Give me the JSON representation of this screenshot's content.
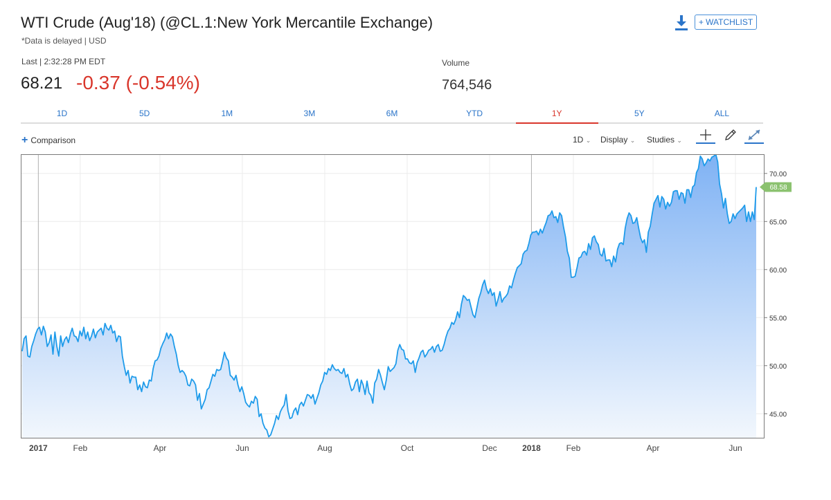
{
  "header": {
    "title": "WTI Crude (Aug'18) (@CL.1:New York Mercantile Exchange)",
    "subtitle": "*Data is delayed | USD",
    "watchlist_label": "+ WATCHLIST",
    "download_icon": "download-icon"
  },
  "quote": {
    "last_label": "Last | 2:32:28 PM EDT",
    "last_price": "68.21",
    "change": "-0.37 (-0.54%)",
    "volume_label": "Volume",
    "volume_value": "764,546",
    "change_color": "#d9362b"
  },
  "tabs": [
    {
      "label": "1D",
      "active": false
    },
    {
      "label": "5D",
      "active": false
    },
    {
      "label": "1M",
      "active": false
    },
    {
      "label": "3M",
      "active": false
    },
    {
      "label": "6M",
      "active": false
    },
    {
      "label": "YTD",
      "active": false
    },
    {
      "label": "1Y",
      "active": true
    },
    {
      "label": "5Y",
      "active": false
    },
    {
      "label": "ALL",
      "active": false
    }
  ],
  "toolbar": {
    "comparison_label": "Comparison",
    "interval_label": "1D",
    "display_label": "Display",
    "studies_label": "Studies",
    "icons": [
      "crosshair-icon",
      "pencil-icon",
      "expand-icon"
    ]
  },
  "chart_data": {
    "type": "area",
    "series": [
      {
        "values": [
          51.5,
          52.8,
          53.1,
          51.0,
          50.9,
          52.0,
          52.6,
          53.3,
          53.8,
          54.0,
          53.2,
          54.1,
          53.5,
          52.0,
          52.4,
          53.2,
          51.2,
          53.5,
          52.0,
          51.0,
          53.1,
          52.0,
          52.7,
          53.0,
          52.4,
          53.3,
          53.9,
          53.1,
          53.0,
          52.5,
          53.6,
          53.1,
          54.0,
          52.8,
          53.5,
          52.6,
          53.1,
          53.8,
          52.9,
          53.5,
          53.7,
          53.9,
          53.2,
          54.4,
          53.9,
          53.7,
          54.2,
          53.4,
          53.6,
          52.5,
          53.1,
          53.0,
          51.0,
          49.9,
          49.0,
          49.5,
          48.2,
          48.9,
          48.8,
          48.8,
          47.5,
          48.0,
          47.3,
          48.3,
          47.8,
          47.7,
          48.5,
          48.4,
          49.7,
          50.5,
          50.6,
          51.0,
          51.8,
          52.3,
          52.7,
          53.4,
          52.8,
          53.3,
          53.0,
          52.0,
          51.2,
          50.0,
          49.3,
          49.5,
          49.3,
          48.9,
          48.0,
          47.9,
          48.6,
          48.4,
          48.0,
          46.4,
          47.1,
          45.5,
          46.0,
          46.5,
          47.5,
          47.7,
          48.4,
          49.1,
          48.9,
          49.6,
          49.5,
          49.6,
          50.4,
          51.4,
          50.8,
          50.5,
          49.0,
          48.8,
          48.5,
          49.0,
          48.0,
          47.3,
          47.8,
          47.1,
          46.2,
          45.9,
          45.7,
          46.3,
          46.1,
          46.8,
          46.5,
          44.7,
          45.0,
          44.0,
          43.5,
          43.3,
          42.6,
          42.8,
          43.4,
          44.0,
          44.8,
          44.4,
          45.2,
          45.6,
          45.9,
          47.0,
          45.3,
          44.5,
          44.6,
          45.3,
          45.6,
          44.9,
          45.9,
          46.2,
          45.8,
          46.4,
          47.0,
          46.9,
          46.6,
          47.0,
          46.0,
          46.6,
          47.2,
          48.0,
          48.4,
          49.3,
          49.1,
          49.7,
          49.5,
          50.1,
          49.7,
          49.5,
          49.6,
          49.3,
          49.2,
          49.7,
          48.8,
          49.1,
          48.1,
          47.4,
          47.6,
          48.3,
          48.6,
          47.3,
          48.5,
          48.0,
          47.0,
          48.4,
          47.2,
          46.9,
          46.1,
          48.2,
          48.6,
          49.6,
          49.0,
          48.2,
          47.5,
          48.5,
          49.9,
          49.4,
          49.6,
          49.8,
          50.2,
          51.6,
          52.2,
          51.7,
          51.6,
          50.7,
          50.7,
          50.3,
          50.2,
          50.5,
          49.3,
          50.3,
          50.8,
          51.4,
          51.6,
          50.9,
          51.2,
          51.6,
          51.7,
          52.0,
          51.4,
          52.0,
          52.2,
          51.5,
          51.6,
          52.2,
          53.0,
          53.6,
          53.9,
          54.5,
          54.3,
          54.8,
          55.6,
          55.0,
          56.4,
          57.3,
          57.1,
          56.8,
          56.9,
          56.1,
          55.3,
          55.0,
          56.0,
          57.0,
          57.6,
          58.4,
          58.9,
          58.0,
          57.5,
          58.0,
          57.3,
          57.6,
          56.2,
          56.9,
          57.7,
          56.6,
          57.0,
          57.2,
          57.5,
          58.3,
          58.1,
          58.9,
          59.6,
          60.2,
          60.4,
          60.6,
          61.6,
          61.9,
          62.0,
          62.7,
          63.6,
          63.9,
          63.9,
          64.0,
          63.6,
          64.2,
          63.8,
          64.4,
          64.9,
          65.6,
          65.7,
          66.1,
          65.4,
          65.5,
          64.9,
          65.9,
          65.6,
          64.4,
          63.4,
          61.9,
          61.2,
          59.2,
          59.2,
          59.3,
          60.2,
          61.2,
          61.3,
          61.8,
          61.9,
          61.5,
          62.7,
          62.1,
          63.3,
          63.5,
          62.9,
          62.6,
          61.6,
          61.4,
          62.2,
          60.9,
          61.0,
          61.0,
          60.3,
          61.4,
          60.8,
          62.1,
          62.7,
          62.8,
          62.6,
          64.3,
          65.3,
          65.9,
          65.6,
          64.8,
          64.9,
          65.4,
          64.3,
          63.3,
          62.8,
          63.1,
          61.8,
          63.9,
          64.5,
          65.8,
          66.9,
          67.3,
          67.7,
          66.5,
          67.6,
          67.3,
          66.3,
          67.0,
          66.6,
          67.0,
          68.1,
          68.2,
          68.2,
          67.3,
          68.0,
          67.9,
          66.9,
          68.3,
          68.3,
          67.5,
          68.6,
          68.8,
          70.1,
          70.5,
          71.8,
          71.5,
          70.8,
          71.1,
          71.5,
          71.3,
          71.7,
          71.8,
          72.0,
          71.2,
          68.9,
          67.9,
          66.4,
          67.4,
          65.8,
          64.8,
          65.0,
          65.8,
          65.3,
          65.8,
          66.0,
          66.2,
          66.4,
          66.7,
          65.0,
          66.0,
          65.0,
          66.0,
          65.2,
          68.58
        ]
      }
    ],
    "x_range": [
      "2016-12-19",
      "2018-06-22"
    ],
    "x_ticks": [
      {
        "label": "2017",
        "date": "2017-01-01",
        "major": true
      },
      {
        "label": "Feb",
        "date": "2017-02-01"
      },
      {
        "label": "Apr",
        "date": "2017-04-01"
      },
      {
        "label": "Jun",
        "date": "2017-06-01"
      },
      {
        "label": "Aug",
        "date": "2017-08-01"
      },
      {
        "label": "Oct",
        "date": "2017-10-01"
      },
      {
        "label": "Dec",
        "date": "2017-12-01"
      },
      {
        "label": "2018",
        "date": "2018-01-01",
        "major": true
      },
      {
        "label": "Feb",
        "date": "2018-02-01"
      },
      {
        "label": "Apr",
        "date": "2018-04-01"
      },
      {
        "label": "Jun",
        "date": "2018-06-01"
      }
    ],
    "y_ticks": [
      "70.00",
      "65.00",
      "60.00",
      "55.00",
      "50.00",
      "45.00"
    ],
    "ylim": [
      42.5,
      72
    ],
    "last_value_label": "68.58",
    "grid": true,
    "colors": {
      "line": "#1e9bea",
      "fill_top": "#7fb2f4",
      "fill_bottom": "#f2f7fd",
      "last_tag": "#8bc26f"
    }
  }
}
